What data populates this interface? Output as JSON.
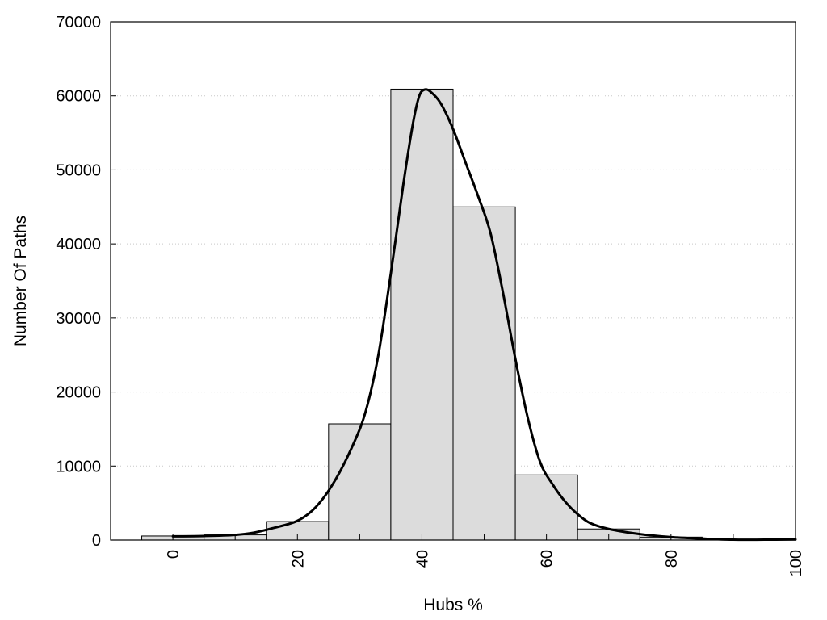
{
  "chart_data": {
    "type": "bar",
    "xlabel": "Hubs %",
    "ylabel": "Number Of Paths",
    "xlim": [
      -10,
      100
    ],
    "ylim": [
      0,
      70000
    ],
    "xticks": [
      0,
      20,
      40,
      60,
      80,
      100
    ],
    "yticks": [
      0,
      10000,
      20000,
      30000,
      40000,
      50000,
      60000,
      70000
    ],
    "grid": "horizontal dotted",
    "bin_width": 10,
    "bins": [
      {
        "center": 0,
        "value": 550
      },
      {
        "center": 10,
        "value": 700
      },
      {
        "center": 20,
        "value": 2500
      },
      {
        "center": 30,
        "value": 15700
      },
      {
        "center": 40,
        "value": 60900
      },
      {
        "center": 50,
        "value": 45000
      },
      {
        "center": 60,
        "value": 8800
      },
      {
        "center": 70,
        "value": 1500
      },
      {
        "center": 80,
        "value": 400
      },
      {
        "center": 90,
        "value": 100
      }
    ],
    "curve": [
      [
        0,
        500
      ],
      [
        5,
        550
      ],
      [
        10,
        700
      ],
      [
        13,
        1000
      ],
      [
        16,
        1600
      ],
      [
        20,
        2600
      ],
      [
        23,
        4500
      ],
      [
        26,
        8000
      ],
      [
        29,
        13000
      ],
      [
        31,
        17500
      ],
      [
        33,
        25000
      ],
      [
        35,
        36000
      ],
      [
        37,
        48000
      ],
      [
        38.5,
        56000
      ],
      [
        39.5,
        59800
      ],
      [
        40.3,
        60800
      ],
      [
        41.3,
        60600
      ],
      [
        43,
        59000
      ],
      [
        45,
        55500
      ],
      [
        47,
        51000
      ],
      [
        49,
        46500
      ],
      [
        51,
        41500
      ],
      [
        53,
        33500
      ],
      [
        55,
        24500
      ],
      [
        57,
        16500
      ],
      [
        59,
        10500
      ],
      [
        61,
        7500
      ],
      [
        63,
        5200
      ],
      [
        65,
        3500
      ],
      [
        67,
        2300
      ],
      [
        70,
        1500
      ],
      [
        75,
        800
      ],
      [
        80,
        400
      ],
      [
        85,
        200
      ],
      [
        90,
        50
      ],
      [
        95,
        50
      ],
      [
        100,
        80
      ]
    ]
  }
}
